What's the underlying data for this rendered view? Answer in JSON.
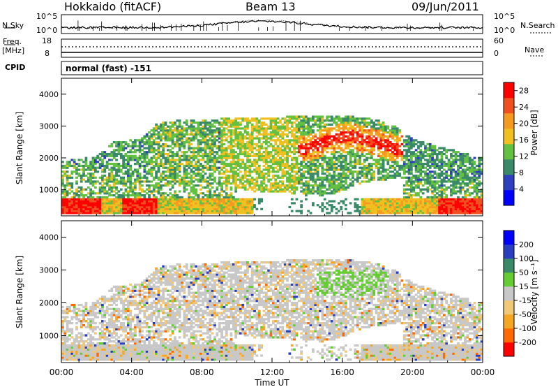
{
  "header": {
    "station": "Hokkaido (fitACF)",
    "beam": "Beam 13",
    "date": "09/Jun/2011"
  },
  "top_panel": {
    "left_label": "N.Sky",
    "right_label": "N.Search",
    "left_ticks": [
      "10^5",
      "10^0"
    ],
    "right_ticks": [
      "10^5",
      "10^0"
    ]
  },
  "freq_panel": {
    "left_label_1": "Freq.",
    "left_label_2": "[MHz]",
    "right_label": "Nave",
    "left_ticks": [
      "18",
      "8"
    ],
    "right_ticks": [
      "60",
      "0"
    ]
  },
  "cpid": {
    "label": "CPID",
    "value": "normal (fast) -151"
  },
  "colors": {
    "power_scale": [
      "#0000ff",
      "#2e3fbf",
      "#3a8a6a",
      "#64c040",
      "#f0c020",
      "#f59a20",
      "#f05020",
      "#ff0000"
    ],
    "velocity_scale": [
      "#ff0000",
      "#ff6a00",
      "#f5a623",
      "#f0c878",
      "#c8c8c8",
      "#66cc33",
      "#3a8a6a",
      "#2a3fbf",
      "#0000ff"
    ]
  },
  "chart_data": [
    {
      "type": "heatmap",
      "panel": "power",
      "ylabel": "Slant Range [km]",
      "yticks": [
        1000,
        2000,
        3000,
        4000
      ],
      "ylim": [
        180,
        4500
      ],
      "x": [
        "00:00",
        "04:00",
        "08:00",
        "12:00",
        "16:00",
        "20:00",
        "00:00"
      ],
      "colorbar": {
        "label": "Power [dB]",
        "ticks": [
          4,
          8,
          12,
          16,
          20,
          24,
          28
        ],
        "range": [
          0,
          30
        ]
      },
      "grid": false
    },
    {
      "type": "heatmap",
      "panel": "velocity",
      "ylabel": "Slant Range [km]",
      "yticks": [
        1000,
        2000,
        3000,
        4000
      ],
      "ylim": [
        180,
        4500
      ],
      "x": [
        "00:00",
        "04:00",
        "08:00",
        "12:00",
        "16:00",
        "20:00",
        "00:00"
      ],
      "xlabel": "Time UT",
      "colorbar": {
        "label": "Velocity [m s⁻¹]",
        "ticks": [
          200,
          100,
          50,
          15,
          -15,
          -50,
          -100,
          -200
        ]
      },
      "grid": false
    }
  ]
}
